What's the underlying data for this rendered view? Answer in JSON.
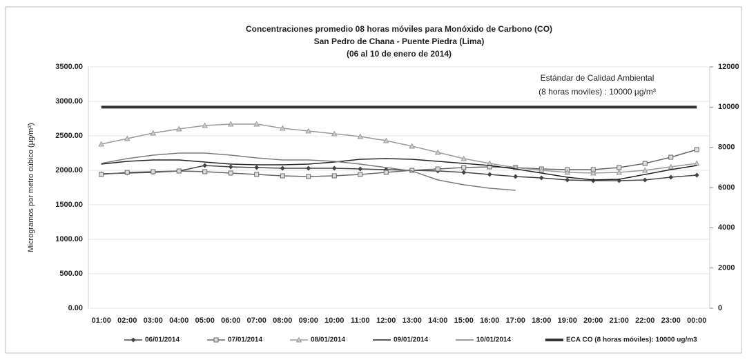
{
  "chart_data": {
    "type": "line",
    "title": "Concentraciones promedio 08 horas móviles para Monóxido de Carbono (CO)",
    "subtitle": "San Pedro de Chana - Puente Piedra (Lima)",
    "subtitle2": "(06 al 10 de enero de 2014)",
    "y_label": "Microgramos por metro cúbico (µg/m³)",
    "annotation": [
      "Estándar de Calidad Ambiental",
      "(8 horas moviles) :  10000 µg/m³"
    ],
    "categories": [
      "01:00",
      "02:00",
      "03:00",
      "04:00",
      "05:00",
      "06:00",
      "07:00",
      "08:00",
      "09:00",
      "10:00",
      "11:00",
      "12:00",
      "13:00",
      "14:00",
      "15:00",
      "16:00",
      "17:00",
      "18:00",
      "19:00",
      "20:00",
      "21:00",
      "22:00",
      "23:00",
      "00:00"
    ],
    "ylim": [
      0,
      3500
    ],
    "yticks": [
      {
        "value": 0,
        "label": "0.00"
      },
      {
        "value": 500,
        "label": "500.00"
      },
      {
        "value": 1000,
        "label": "1000.00"
      },
      {
        "value": 1500,
        "label": "1500.00"
      },
      {
        "value": 2000,
        "label": "2000.00"
      },
      {
        "value": 2500,
        "label": "2500.00"
      },
      {
        "value": 3000,
        "label": "3000.00"
      },
      {
        "value": 3500,
        "label": "3500.00"
      }
    ],
    "y2lim": [
      0,
      12000
    ],
    "y2ticks": [
      0,
      2000,
      4000,
      6000,
      8000,
      10000,
      12000
    ],
    "grid": true,
    "series": [
      {
        "name": "06/01/2014",
        "color": "#444444",
        "marker": "diamond",
        "values": [
          1950,
          1960,
          1970,
          1990,
          2070,
          2050,
          2040,
          2030,
          2030,
          2030,
          2020,
          2010,
          2000,
          1990,
          1970,
          1940,
          1910,
          1890,
          1860,
          1850,
          1850,
          1860,
          1900,
          1930
        ]
      },
      {
        "name": "07/01/2014",
        "color": "#666666",
        "marker": "square",
        "values": [
          1940,
          1970,
          1980,
          1990,
          1980,
          1960,
          1940,
          1920,
          1910,
          1920,
          1940,
          1970,
          2000,
          2020,
          2040,
          2050,
          2040,
          2020,
          2010,
          2010,
          2040,
          2100,
          2190,
          2300
        ]
      },
      {
        "name": "08/01/2014",
        "color": "#9a9a9a",
        "marker": "triangle",
        "values": [
          2380,
          2460,
          2540,
          2600,
          2650,
          2670,
          2670,
          2610,
          2570,
          2530,
          2490,
          2430,
          2350,
          2260,
          2170,
          2100,
          2040,
          2000,
          1970,
          1960,
          1970,
          2000,
          2050,
          2100
        ]
      },
      {
        "name": "09/01/2014",
        "color": "#222222",
        "marker": "none",
        "values": [
          2090,
          2130,
          2150,
          2150,
          2120,
          2090,
          2080,
          2080,
          2090,
          2120,
          2160,
          2170,
          2160,
          2130,
          2100,
          2070,
          2020,
          1960,
          1900,
          1860,
          1870,
          1940,
          2010,
          2070
        ]
      },
      {
        "name": "10/01/2014",
        "color": "#7a7a7a",
        "marker": "none",
        "values": [
          2100,
          2170,
          2220,
          2250,
          2250,
          2220,
          2180,
          2150,
          2150,
          2130,
          2090,
          2040,
          1990,
          1860,
          1790,
          1740,
          1710,
          null,
          null,
          null,
          null,
          null,
          null,
          null
        ]
      },
      {
        "name": "ECA CO (8 horas móviles): 10000 ug/m3",
        "color": "#333333",
        "marker": "none",
        "axis": "y2",
        "width": 4,
        "values": [
          10000,
          10000,
          10000,
          10000,
          10000,
          10000,
          10000,
          10000,
          10000,
          10000,
          10000,
          10000,
          10000,
          10000,
          10000,
          10000,
          10000,
          10000,
          10000,
          10000,
          10000,
          10000,
          10000,
          10000
        ]
      }
    ]
  }
}
